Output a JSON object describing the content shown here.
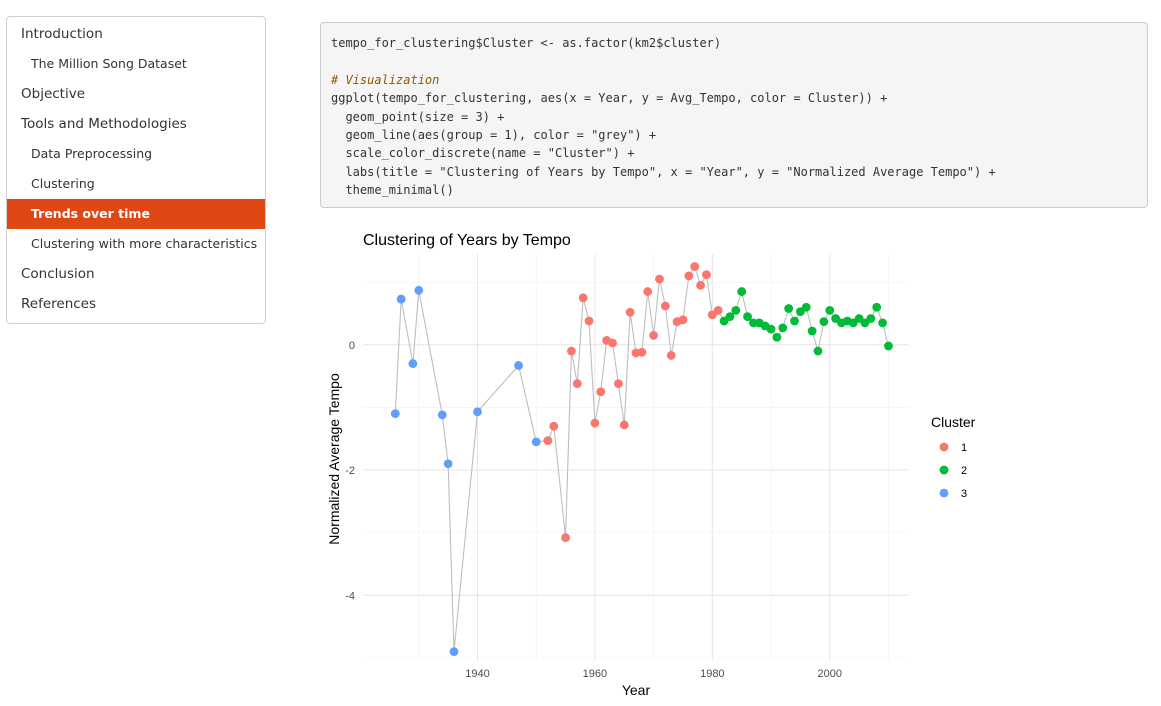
{
  "toc": {
    "items": [
      {
        "label": "Introduction",
        "level": 1,
        "active": false
      },
      {
        "label": "The Million Song Dataset",
        "level": 2,
        "active": false
      },
      {
        "label": "Objective",
        "level": 1,
        "active": false
      },
      {
        "label": "Tools and Methodologies",
        "level": 1,
        "active": false
      },
      {
        "label": "Data Preprocessing",
        "level": 2,
        "active": false
      },
      {
        "label": "Clustering",
        "level": 2,
        "active": false
      },
      {
        "label": "Trends over time",
        "level": 2,
        "active": true
      },
      {
        "label": "Clustering with more characteristics",
        "level": 2,
        "active": false
      },
      {
        "label": "Conclusion",
        "level": 1,
        "active": false
      },
      {
        "label": "References",
        "level": 1,
        "active": false
      }
    ],
    "active_color": "#dd4814"
  },
  "code": {
    "line1": "tempo_for_clustering$Cluster <- as.factor(km2$cluster)",
    "line2": "# Visualization",
    "line3": "ggplot(tempo_for_clustering, aes(x = Year, y = Avg_Tempo, color = Cluster)) +",
    "line4": "  geom_point(size = 3) +",
    "line5": "  geom_line(aes(group = 1), color = \"grey\") +",
    "line6": "  scale_color_discrete(name = \"Cluster\") +",
    "line7": "  labs(title = \"Clustering of Years by Tempo\", x = \"Year\", y = \"Normalized Average Tempo\") +",
    "line8": "  theme_minimal()"
  },
  "chart_data": {
    "type": "scatter",
    "title": "Clustering of Years by Tempo",
    "xlabel": "Year",
    "ylabel": "Normalized Average Tempo",
    "xlim": [
      1920.5,
      2013.5
    ],
    "ylim": [
      -5.05,
      1.45
    ],
    "xticks": [
      1940,
      1960,
      1980,
      2000
    ],
    "yticks": [
      0,
      -2,
      -4
    ],
    "grid": true,
    "connect_line": true,
    "line_color": "#bebebe",
    "legend": {
      "title": "Cluster",
      "position": "right"
    },
    "series": [
      {
        "name": "1",
        "color": "#F8766D",
        "points": [
          [
            1952,
            -1.53
          ],
          [
            1953,
            -1.3
          ],
          [
            1955,
            -3.08
          ],
          [
            1956,
            -0.1
          ],
          [
            1957,
            -0.62
          ],
          [
            1958,
            0.75
          ],
          [
            1959,
            0.38
          ],
          [
            1960,
            -1.25
          ],
          [
            1961,
            -0.75
          ],
          [
            1962,
            0.07
          ],
          [
            1963,
            0.03
          ],
          [
            1964,
            -0.62
          ],
          [
            1965,
            -1.28
          ],
          [
            1966,
            0.52
          ],
          [
            1967,
            -0.13
          ],
          [
            1968,
            -0.12
          ],
          [
            1969,
            0.85
          ],
          [
            1970,
            0.15
          ],
          [
            1971,
            1.05
          ],
          [
            1972,
            0.62
          ],
          [
            1973,
            -0.17
          ],
          [
            1974,
            0.37
          ],
          [
            1975,
            0.4
          ],
          [
            1976,
            1.1
          ],
          [
            1977,
            1.25
          ],
          [
            1978,
            0.95
          ],
          [
            1979,
            1.12
          ],
          [
            1980,
            0.48
          ],
          [
            1981,
            0.55
          ]
        ]
      },
      {
        "name": "2",
        "color": "#00BA38",
        "points": [
          [
            1982,
            0.38
          ],
          [
            1983,
            0.45
          ],
          [
            1984,
            0.55
          ],
          [
            1985,
            0.85
          ],
          [
            1986,
            0.45
          ],
          [
            1987,
            0.35
          ],
          [
            1988,
            0.35
          ],
          [
            1989,
            0.3
          ],
          [
            1990,
            0.25
          ],
          [
            1991,
            0.12
          ],
          [
            1992,
            0.27
          ],
          [
            1993,
            0.58
          ],
          [
            1994,
            0.38
          ],
          [
            1995,
            0.53
          ],
          [
            1996,
            0.6
          ],
          [
            1997,
            0.22
          ],
          [
            1998,
            -0.1
          ],
          [
            1999,
            0.37
          ],
          [
            2000,
            0.55
          ],
          [
            2001,
            0.42
          ],
          [
            2002,
            0.35
          ],
          [
            2003,
            0.38
          ],
          [
            2004,
            0.35
          ],
          [
            2005,
            0.42
          ],
          [
            2006,
            0.35
          ],
          [
            2007,
            0.42
          ],
          [
            2008,
            0.6
          ],
          [
            2009,
            0.35
          ],
          [
            2010,
            -0.02
          ]
        ]
      },
      {
        "name": "3",
        "color": "#619CFF",
        "points": [
          [
            1926,
            -1.1
          ],
          [
            1927,
            0.73
          ],
          [
            1929,
            -0.3
          ],
          [
            1930,
            0.87
          ],
          [
            1934,
            -1.12
          ],
          [
            1935,
            -1.9
          ],
          [
            1936,
            -4.9
          ],
          [
            1940,
            -1.07
          ],
          [
            1947,
            -0.33
          ],
          [
            1950,
            -1.55
          ]
        ]
      }
    ]
  }
}
